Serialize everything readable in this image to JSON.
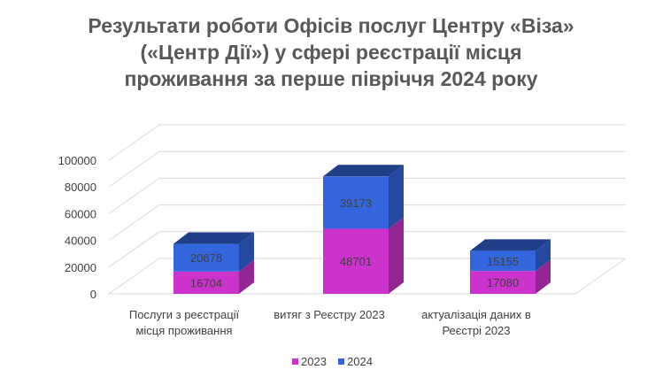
{
  "chart_data": {
    "type": "bar",
    "stacked": true,
    "three_d": true,
    "title_lines": [
      "Результати роботи Офісів послуг Центру «Віза»",
      "(«Центр Дії») у сфері реєстрації місця",
      "проживання за перше півріччя 2024 року"
    ],
    "categories": [
      [
        "Послуги з реєстрації",
        "місця проживання"
      ],
      [
        "витяг з Реєстру 2023"
      ],
      [
        "актуалізація даних в",
        "Реєстрі 2023"
      ]
    ],
    "series": [
      {
        "name": "2023",
        "values": [
          16704,
          48701,
          17080
        ],
        "color": "#cc33cc"
      },
      {
        "name": "2024",
        "values": [
          20678,
          39173,
          15155
        ],
        "color": "#3366dd"
      }
    ],
    "yticks": [
      "0",
      "20000",
      "40000",
      "60000",
      "80000",
      "100000"
    ],
    "ylim": [
      0,
      100000
    ],
    "grid": true,
    "legend_position": "bottom"
  }
}
